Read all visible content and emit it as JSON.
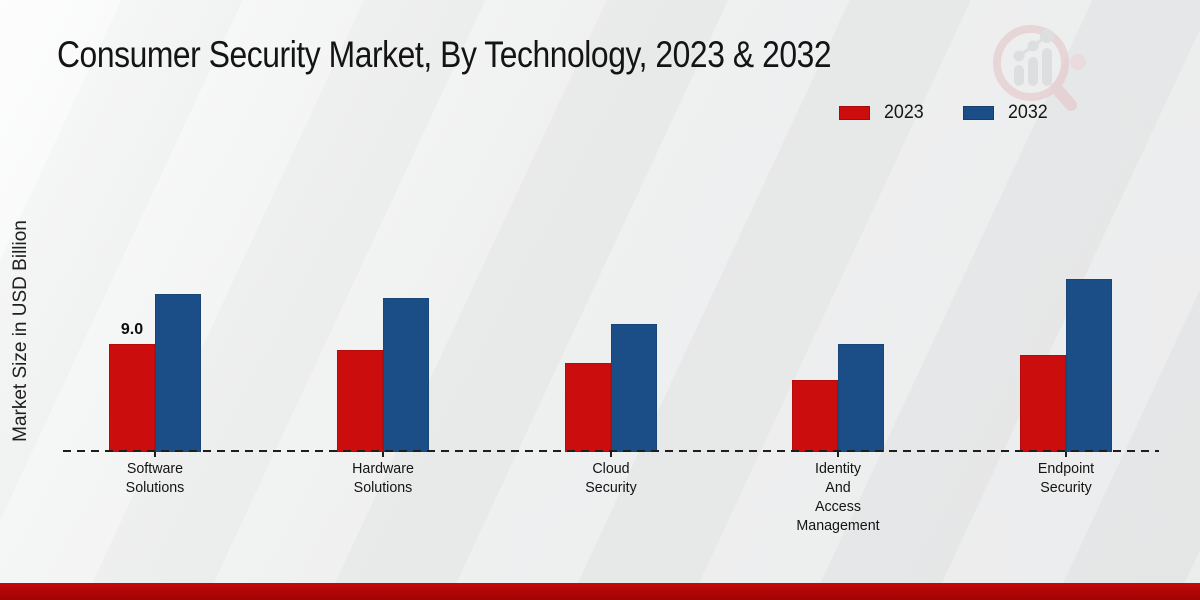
{
  "chart_data": {
    "type": "bar",
    "title": "Consumer Security Market, By Technology, 2023 & 2032",
    "ylabel": "Market Size in USD Billion",
    "xlabel": "",
    "categories": [
      "Software Solutions",
      "Hardware Solutions",
      "Cloud Security",
      "Identity And Access Management",
      "Endpoint Security"
    ],
    "series": [
      {
        "name": "2023",
        "color": "#cc0d0d",
        "values": [
          9.0,
          8.5,
          7.4,
          6.0,
          8.1
        ],
        "data_labels": [
          "9.0",
          "",
          "",
          "",
          ""
        ]
      },
      {
        "name": "2032",
        "color": "#1b4e87",
        "values": [
          13.2,
          12.8,
          10.7,
          9.0,
          14.4
        ],
        "data_labels": [
          "",
          "",
          "",
          "",
          ""
        ]
      }
    ],
    "legend": [
      {
        "label": "2023",
        "color": "#cc0d0d"
      },
      {
        "label": "2032",
        "color": "#1b4e87"
      }
    ],
    "legend_position": "top-right",
    "ylim": [
      0,
      15
    ],
    "grid": false,
    "baseline_style": "dashed"
  },
  "footer": {
    "accent_color": "#b20606"
  },
  "watermark": {
    "name": "market-research-magnifier-logo"
  }
}
